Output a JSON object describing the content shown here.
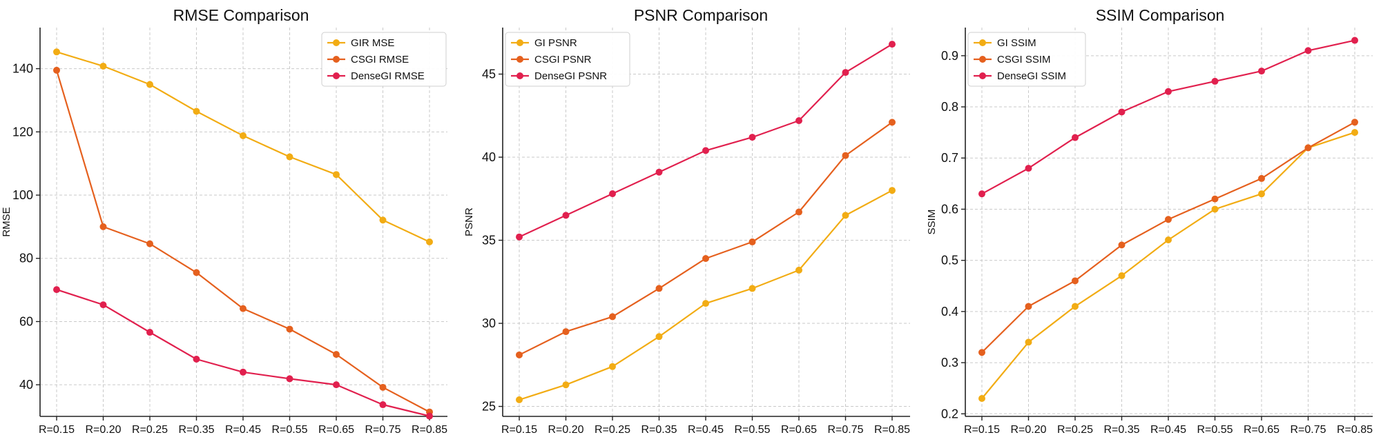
{
  "colors": {
    "gi": "#F2AC14",
    "csgi": "#E5601E",
    "dense": "#E1204E",
    "grid": "#c9c9c9",
    "axis": "#222222"
  },
  "chart_data": [
    {
      "type": "line",
      "title": "RMSE Comparison",
      "xlabel": "",
      "ylabel": "RMSE",
      "categories": [
        "R=0.15",
        "R=0.20",
        "R=0.25",
        "R=0.35",
        "R=0.45",
        "R=0.55",
        "R=0.65",
        "R=0.75",
        "R=0.85"
      ],
      "ylim": [
        30,
        153
      ],
      "yticks": [
        40,
        60,
        80,
        100,
        120,
        140
      ],
      "ytick_labels": [
        "40",
        "60",
        "80",
        "100",
        "120",
        "140"
      ],
      "grid": true,
      "legend_position": "top-right",
      "series": [
        {
          "name": "GIR MSE",
          "color_key": "gi",
          "values": [
            145.3,
            140.8,
            135.0,
            126.5,
            118.8,
            112.1,
            106.5,
            92.1,
            85.2
          ]
        },
        {
          "name": "CSGI RMSE",
          "color_key": "csgi",
          "values": [
            139.5,
            90.0,
            84.6,
            75.5,
            64.1,
            57.6,
            49.6,
            39.2,
            31.4
          ]
        },
        {
          "name": "DenseGI RMSE",
          "color_key": "dense",
          "values": [
            70.1,
            65.3,
            56.6,
            48.1,
            44.0,
            41.9,
            40.0,
            33.7,
            30.1
          ]
        }
      ]
    },
    {
      "type": "line",
      "title": "PSNR Comparison",
      "xlabel": "",
      "ylabel": "PSNR",
      "categories": [
        "R=0.15",
        "R=0.20",
        "R=0.25",
        "R=0.35",
        "R=0.45",
        "R=0.55",
        "R=0.65",
        "R=0.75",
        "R=0.85"
      ],
      "ylim": [
        24.4,
        47.8
      ],
      "yticks": [
        25,
        30,
        35,
        40,
        45
      ],
      "ytick_labels": [
        "25",
        "30",
        "35",
        "40",
        "45"
      ],
      "grid": true,
      "legend_position": "top-left",
      "series": [
        {
          "name": "GI PSNR",
          "color_key": "gi",
          "values": [
            25.4,
            26.3,
            27.4,
            29.2,
            31.2,
            32.1,
            33.2,
            36.5,
            38.0
          ]
        },
        {
          "name": "CSGI PSNR",
          "color_key": "csgi",
          "values": [
            28.1,
            29.5,
            30.4,
            32.1,
            33.9,
            34.9,
            36.7,
            40.1,
            42.1
          ]
        },
        {
          "name": "DenseGI PSNR",
          "color_key": "dense",
          "values": [
            35.2,
            36.5,
            37.8,
            39.1,
            40.4,
            41.2,
            42.2,
            45.1,
            46.8
          ]
        }
      ]
    },
    {
      "type": "line",
      "title": "SSIM Comparison",
      "xlabel": "",
      "ylabel": "SSIM",
      "categories": [
        "R=0.15",
        "R=0.20",
        "R=0.25",
        "R=0.35",
        "R=0.45",
        "R=0.55",
        "R=0.65",
        "R=0.75",
        "R=0.85"
      ],
      "ylim": [
        0.195,
        0.955
      ],
      "yticks": [
        0.2,
        0.3,
        0.4,
        0.5,
        0.6,
        0.7,
        0.8,
        0.9
      ],
      "ytick_labels": [
        "0.2",
        "0.3",
        "0.4",
        "0.5",
        "0.6",
        "0.7",
        "0.8",
        "0.9"
      ],
      "grid": true,
      "legend_position": "top-left",
      "series": [
        {
          "name": "GI SSIM",
          "color_key": "gi",
          "values": [
            0.23,
            0.34,
            0.41,
            0.47,
            0.54,
            0.6,
            0.63,
            0.72,
            0.75
          ]
        },
        {
          "name": "CSGI SSIM",
          "color_key": "csgi",
          "values": [
            0.32,
            0.41,
            0.46,
            0.53,
            0.58,
            0.62,
            0.66,
            0.72,
            0.77
          ]
        },
        {
          "name": "DenseGI SSIM",
          "color_key": "dense",
          "values": [
            0.63,
            0.68,
            0.74,
            0.79,
            0.83,
            0.85,
            0.87,
            0.91,
            0.93
          ]
        }
      ]
    }
  ]
}
